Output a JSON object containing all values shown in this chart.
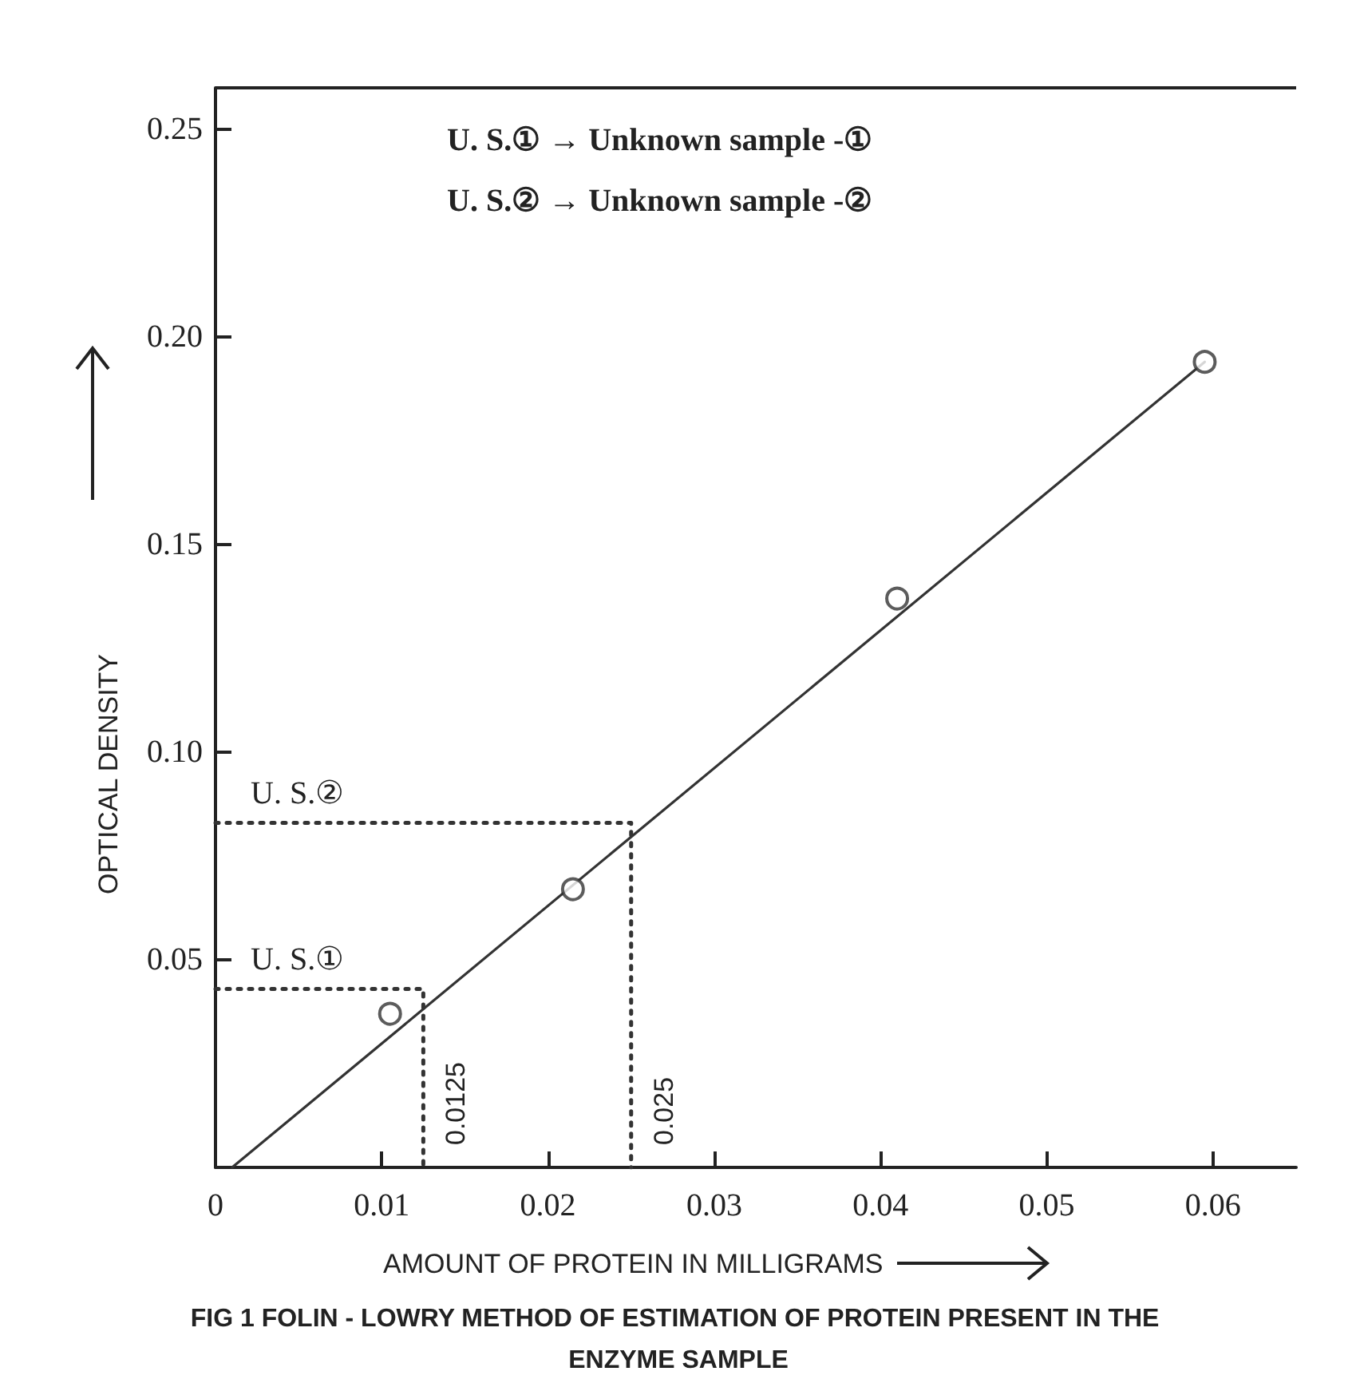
{
  "chart_data": {
    "type": "scatter",
    "title": "FIG 1 FOLIN - LOWRY METHOD OF ESTIMATION OF PROTEIN PRESENT IN THE ENZYME SAMPLE",
    "xlabel": "AMOUNT OF PROTEIN IN MILLIGRAMS",
    "ylabel": "OPTICAL DENSITY",
    "series": [
      {
        "color": "#333333",
        "marker": "circle",
        "x": [
          0.0105,
          0.0215,
          0.041,
          0.0595
        ],
        "values": [
          0.037,
          0.067,
          0.137,
          0.194
        ]
      },
      {
        "type": "line",
        "color": "#333333",
        "marker": "none",
        "line_style": "solid",
        "x": [
          0.001,
          0.0595
        ],
        "values": [
          0,
          0.194
        ]
      },
      {
        "type": "line",
        "color": "#333333",
        "marker": "none",
        "line_style": "dotted",
        "x": [
          0,
          0.0125,
          0.0125
        ],
        "values": [
          0.043,
          0.043,
          0
        ]
      },
      {
        "type": "line",
        "color": "#333333",
        "marker": "none",
        "line_style": "dotted",
        "x": [
          0,
          0.025,
          0.025
        ],
        "values": [
          0.083,
          0.083,
          0
        ]
      }
    ],
    "annotations": [
      "U. S.① → Unknown sample -①",
      "U. S.② → Unknown sample -②",
      {
        "text": "U. S.①",
        "x": 0,
        "y": 0.043
      },
      {
        "text": "U. S.②",
        "x": 0,
        "y": 0.083
      },
      {
        "text": "0.0125",
        "x": 0.0125,
        "y": 0
      },
      {
        "text": "0.025",
        "x": 0.025,
        "y": 0
      }
    ],
    "xlim": [
      0,
      0.065
    ],
    "xticks": [
      0,
      0.01,
      0.02,
      0.03,
      0.04,
      0.05,
      0.06
    ],
    "ylim": [
      0,
      0.26
    ],
    "yticks": [
      {
        "value": 0.05,
        "label": "0.05"
      },
      {
        "value": 0.1,
        "label": "0.10"
      },
      {
        "value": 0.15,
        "label": "0.15"
      },
      {
        "value": 0.2,
        "label": "0.20"
      },
      {
        "value": 0.25,
        "label": "0.25"
      }
    ],
    "grid": false
  }
}
